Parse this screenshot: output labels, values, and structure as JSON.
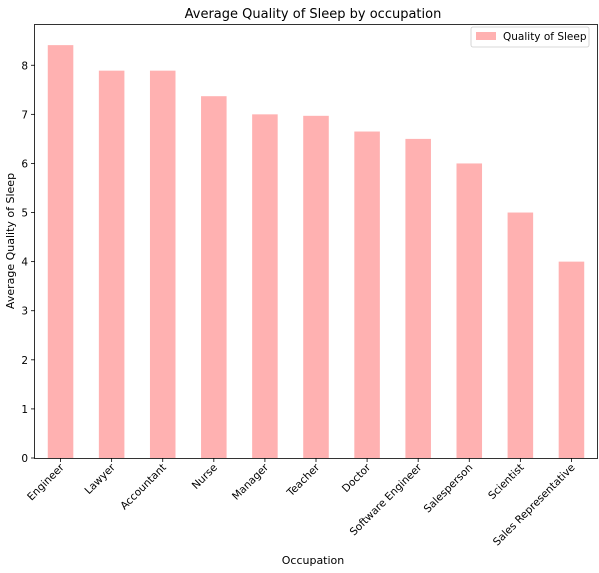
{
  "chart_data": {
    "type": "bar",
    "title": "Average Quality of Sleep by occupation",
    "xlabel": "Occupation",
    "ylabel": "Average Quality of Sleep",
    "categories": [
      "Engineer",
      "Lawyer",
      "Accountant",
      "Nurse",
      "Manager",
      "Teacher",
      "Doctor",
      "Software Engineer",
      "Salesperson",
      "Scientist",
      "Sales Representative"
    ],
    "series": [
      {
        "name": "Quality of Sleep",
        "values": [
          8.41,
          7.89,
          7.89,
          7.37,
          7.0,
          6.97,
          6.65,
          6.5,
          6.0,
          5.0,
          4.0
        ],
        "color": "#ffb1b1"
      }
    ],
    "ylim": [
      0,
      8.82
    ],
    "yticks": [
      0,
      1,
      2,
      3,
      4,
      5,
      6,
      7,
      8
    ],
    "legend_position": "top-right",
    "grid": false
  }
}
